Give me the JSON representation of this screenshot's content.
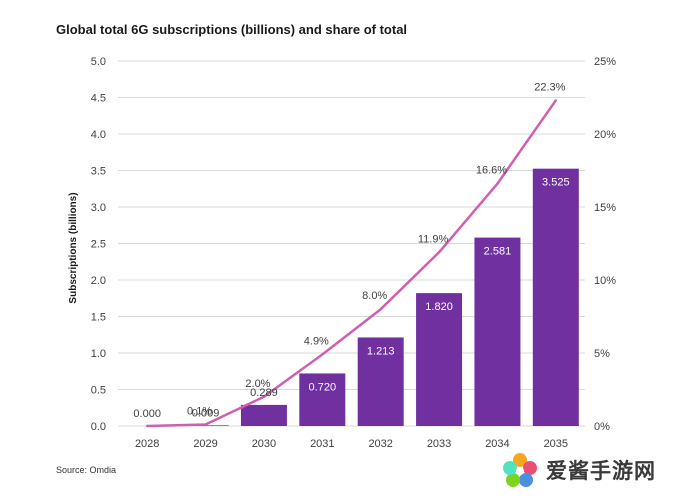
{
  "title": "Global total 6G subscriptions (billions) and share of total",
  "source": "Source: Omdia",
  "watermark_text": "爱酱手游网",
  "colors": {
    "bar": "#7030a0",
    "line": "#d05fb0",
    "grid": "#d9d9d9",
    "text": "#404040",
    "bar_label": "#ffffff"
  },
  "chart_data": {
    "type": "bar",
    "categories": [
      "2028",
      "2029",
      "2030",
      "2031",
      "2032",
      "2033",
      "2034",
      "2035"
    ],
    "series": [
      {
        "type": "bar",
        "axis": "left",
        "values": [
          0.0,
          0.009,
          0.289,
          0.72,
          1.213,
          1.82,
          2.581,
          3.525
        ],
        "labels": [
          "0.000",
          "0.009",
          "0.289",
          "0.720",
          "1.213",
          "1.820",
          "2.581",
          "3.525"
        ]
      },
      {
        "type": "line",
        "axis": "right",
        "values": [
          0.0,
          0.1,
          2.0,
          4.9,
          8.0,
          11.9,
          16.6,
          22.3
        ],
        "labels": [
          "",
          "0.1%",
          "2.0%",
          "4.9%",
          "8.0%",
          "11.9%",
          "16.6%",
          "22.3%"
        ]
      }
    ],
    "ylabel": "Subscriptions (billions)",
    "ylim": [
      0,
      5
    ],
    "yticks": [
      "0.0",
      "0.5",
      "1.0",
      "1.5",
      "2.0",
      "2.5",
      "3.0",
      "3.5",
      "4.0",
      "4.5",
      "5.0"
    ],
    "y2lim": [
      0,
      25
    ],
    "y2ticks": [
      "0%",
      "5%",
      "10%",
      "15%",
      "20%",
      "25%"
    ],
    "grid": true
  }
}
